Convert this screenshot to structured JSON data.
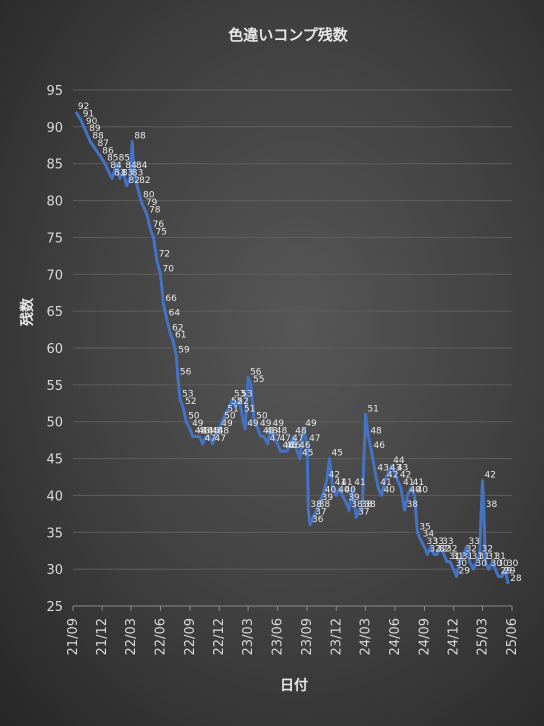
{
  "chart_data": {
    "type": "line",
    "title": "色違いコンプ残数",
    "xlabel": "日付",
    "ylabel": "残数",
    "ylim": [
      25,
      95
    ],
    "yticks": [
      25,
      30,
      35,
      40,
      45,
      50,
      55,
      60,
      65,
      70,
      75,
      80,
      85,
      90,
      95
    ],
    "xlim": [
      "2021-09",
      "2025-06"
    ],
    "xticks": [
      "21/09",
      "21/12",
      "22/03",
      "22/06",
      "22/09",
      "22/12",
      "23/03",
      "23/06",
      "23/09",
      "23/12",
      "24/03",
      "24/06",
      "24/09",
      "24/12",
      "25/03",
      "25/06"
    ],
    "legend": "none",
    "series_color": "#4472c4",
    "series": [
      {
        "values": [
          [
            "2021-09-10",
            92
          ],
          [
            "2021-09-25",
            91
          ],
          [
            "2021-10-05",
            90
          ],
          [
            "2021-10-15",
            89
          ],
          [
            "2021-10-25",
            88
          ],
          [
            "2021-11-10",
            87
          ],
          [
            "2021-11-25",
            86
          ],
          [
            "2021-12-10",
            85
          ],
          [
            "2021-12-20",
            84
          ],
          [
            "2022-01-01",
            83
          ],
          [
            "2022-01-15",
            85
          ],
          [
            "2022-01-25",
            83
          ],
          [
            "2022-02-05",
            84
          ],
          [
            "2022-02-15",
            82
          ],
          [
            "2022-02-25",
            83
          ],
          [
            "2022-03-05",
            88
          ],
          [
            "2022-03-10",
            84
          ],
          [
            "2022-03-20",
            82
          ],
          [
            "2022-04-01",
            80
          ],
          [
            "2022-04-10",
            79
          ],
          [
            "2022-04-20",
            78
          ],
          [
            "2022-05-01",
            76
          ],
          [
            "2022-05-10",
            75
          ],
          [
            "2022-05-20",
            72
          ],
          [
            "2022-06-01",
            70
          ],
          [
            "2022-06-10",
            66
          ],
          [
            "2022-06-20",
            64
          ],
          [
            "2022-07-01",
            62
          ],
          [
            "2022-07-10",
            61
          ],
          [
            "2022-07-20",
            59
          ],
          [
            "2022-07-25",
            56
          ],
          [
            "2022-08-01",
            53
          ],
          [
            "2022-08-10",
            52
          ],
          [
            "2022-08-20",
            50
          ],
          [
            "2022-09-01",
            49
          ],
          [
            "2022-09-10",
            48
          ],
          [
            "2022-09-20",
            48
          ],
          [
            "2022-10-01",
            48
          ],
          [
            "2022-10-10",
            47
          ],
          [
            "2022-10-20",
            48
          ],
          [
            "2022-11-01",
            48
          ],
          [
            "2022-11-10",
            47
          ],
          [
            "2022-11-20",
            48
          ],
          [
            "2022-12-01",
            49
          ],
          [
            "2022-12-10",
            50
          ],
          [
            "2022-12-20",
            51
          ],
          [
            "2023-01-01",
            52
          ],
          [
            "2023-01-10",
            53
          ],
          [
            "2023-01-20",
            52
          ],
          [
            "2023-02-01",
            53
          ],
          [
            "2023-02-10",
            51
          ],
          [
            "2023-02-20",
            49
          ],
          [
            "2023-03-01",
            56
          ],
          [
            "2023-03-10",
            55
          ],
          [
            "2023-03-20",
            50
          ],
          [
            "2023-04-01",
            49
          ],
          [
            "2023-04-10",
            48
          ],
          [
            "2023-04-20",
            48
          ],
          [
            "2023-05-01",
            47
          ],
          [
            "2023-05-10",
            49
          ],
          [
            "2023-05-20",
            48
          ],
          [
            "2023-06-01",
            47
          ],
          [
            "2023-06-10",
            46
          ],
          [
            "2023-06-20",
            46
          ],
          [
            "2023-07-01",
            46
          ],
          [
            "2023-07-10",
            47
          ],
          [
            "2023-07-20",
            48
          ],
          [
            "2023-08-01",
            46
          ],
          [
            "2023-08-10",
            45
          ],
          [
            "2023-08-20",
            49
          ],
          [
            "2023-09-01",
            47
          ],
          [
            "2023-09-05",
            38
          ],
          [
            "2023-09-10",
            36
          ],
          [
            "2023-09-20",
            37
          ],
          [
            "2023-10-01",
            38
          ],
          [
            "2023-10-10",
            39
          ],
          [
            "2023-10-20",
            40
          ],
          [
            "2023-11-01",
            42
          ],
          [
            "2023-11-10",
            45
          ],
          [
            "2023-11-20",
            41
          ],
          [
            "2023-12-01",
            40
          ],
          [
            "2023-12-10",
            41
          ],
          [
            "2023-12-20",
            40
          ],
          [
            "2024-01-01",
            39
          ],
          [
            "2024-01-10",
            38
          ],
          [
            "2024-01-20",
            41
          ],
          [
            "2024-02-01",
            37
          ],
          [
            "2024-02-10",
            38
          ],
          [
            "2024-02-20",
            38
          ],
          [
            "2024-03-01",
            51
          ],
          [
            "2024-03-10",
            48
          ],
          [
            "2024-03-20",
            46
          ],
          [
            "2024-04-01",
            43
          ],
          [
            "2024-04-10",
            41
          ],
          [
            "2024-04-20",
            40
          ],
          [
            "2024-05-01",
            42
          ],
          [
            "2024-05-10",
            43
          ],
          [
            "2024-05-20",
            44
          ],
          [
            "2024-06-01",
            43
          ],
          [
            "2024-06-10",
            42
          ],
          [
            "2024-06-20",
            41
          ],
          [
            "2024-07-01",
            38
          ],
          [
            "2024-07-10",
            40
          ],
          [
            "2024-07-20",
            41
          ],
          [
            "2024-08-01",
            40
          ],
          [
            "2024-08-10",
            35
          ],
          [
            "2024-08-20",
            34
          ],
          [
            "2024-09-01",
            33
          ],
          [
            "2024-09-10",
            32
          ],
          [
            "2024-09-20",
            33
          ],
          [
            "2024-10-01",
            32
          ],
          [
            "2024-10-10",
            32
          ],
          [
            "2024-10-20",
            33
          ],
          [
            "2024-11-01",
            32
          ],
          [
            "2024-11-10",
            31
          ],
          [
            "2024-11-20",
            31
          ],
          [
            "2024-12-01",
            30
          ],
          [
            "2024-12-10",
            29
          ],
          [
            "2024-12-20",
            31
          ],
          [
            "2025-01-01",
            32
          ],
          [
            "2025-01-10",
            33
          ],
          [
            "2025-01-20",
            31
          ],
          [
            "2025-02-01",
            30
          ],
          [
            "2025-02-10",
            31
          ],
          [
            "2025-02-20",
            32
          ],
          [
            "2025-03-01",
            42
          ],
          [
            "2025-03-05",
            38
          ],
          [
            "2025-03-10",
            31
          ],
          [
            "2025-03-20",
            30
          ],
          [
            "2025-04-01",
            31
          ],
          [
            "2025-04-10",
            30
          ],
          [
            "2025-04-20",
            29
          ],
          [
            "2025-05-01",
            29
          ],
          [
            "2025-05-10",
            30
          ],
          [
            "2025-05-20",
            28
          ]
        ]
      }
    ]
  }
}
